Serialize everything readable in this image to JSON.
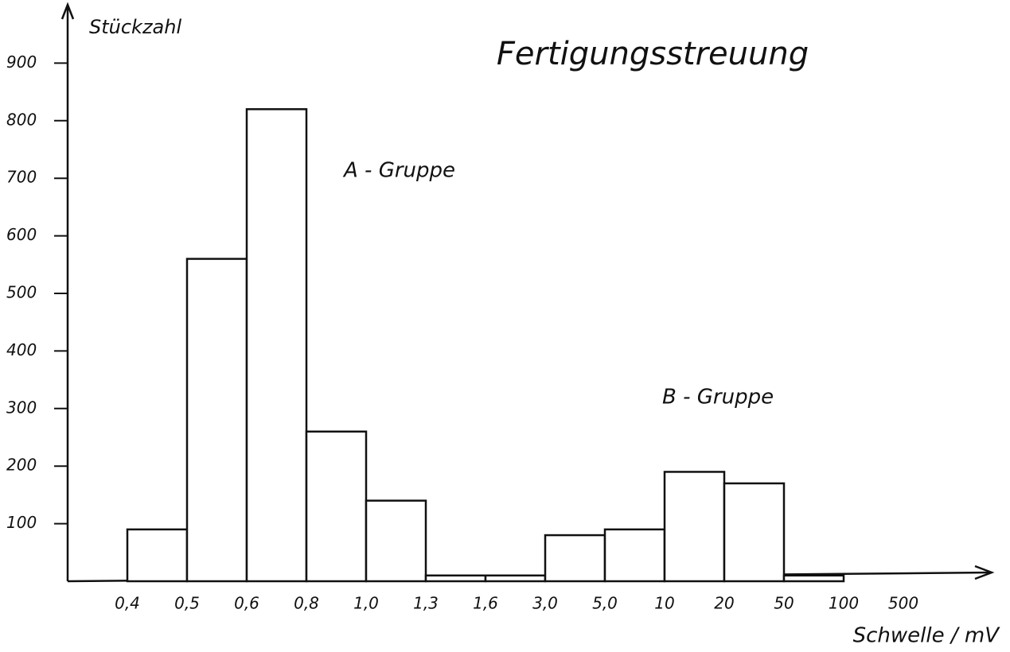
{
  "chart_data": {
    "type": "histogram",
    "title": "Fertigungsstreuung",
    "ylabel": "Stückzahl",
    "xlabel": "Schwelle / mV",
    "annotations": [
      "A - Gruppe",
      "B - Gruppe"
    ],
    "bins": [
      "0,4",
      "0,5",
      "0,6",
      "0,8",
      "1,0",
      "1,3",
      "1,6",
      "3,0",
      "5,0",
      "10",
      "20",
      "50",
      "100",
      "500"
    ],
    "values": [
      90,
      560,
      820,
      260,
      140,
      10,
      10,
      80,
      90,
      190,
      170,
      10,
      0
    ],
    "color": "#ffffff",
    "ylim": [
      0,
      1000
    ],
    "yticks": [
      100,
      200,
      300,
      400,
      500,
      600,
      700,
      800,
      900
    ]
  }
}
